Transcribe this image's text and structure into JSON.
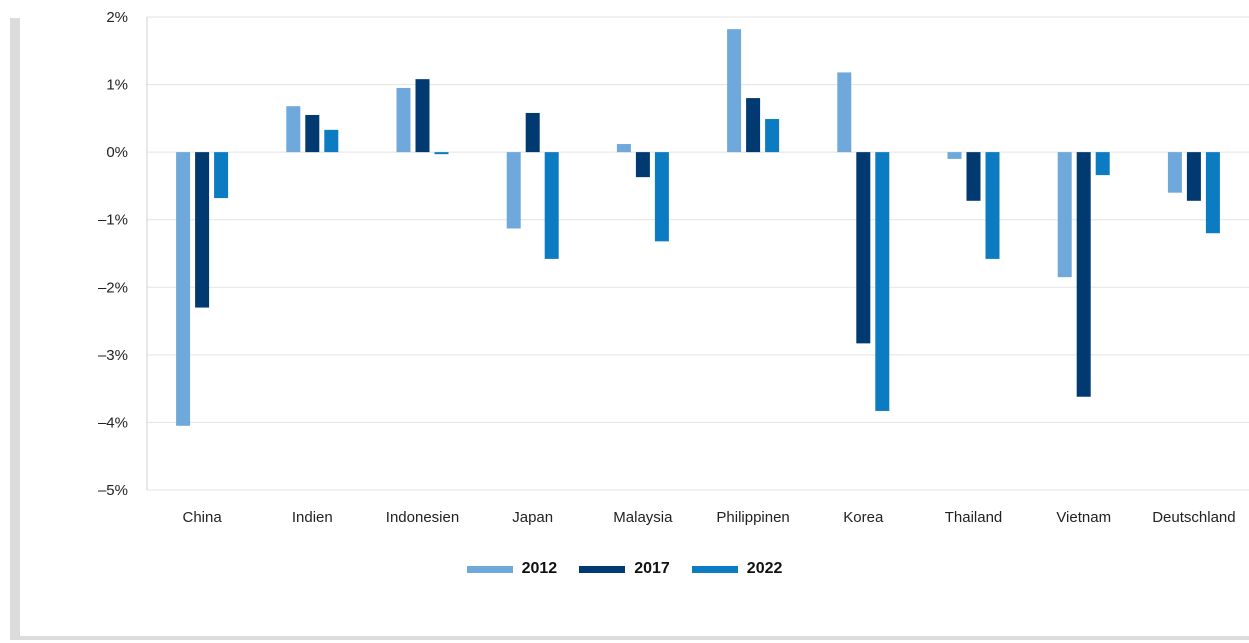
{
  "chart_data": {
    "type": "bar",
    "categories": [
      "China",
      "Indien",
      "Indonesien",
      "Japan",
      "Malaysia",
      "Philippinen",
      "Korea",
      "Thailand",
      "Vietnam",
      "Deutschland"
    ],
    "series": [
      {
        "name": "2012",
        "color": "#6FA9DC",
        "values": [
          -4.05,
          0.68,
          0.95,
          -1.13,
          0.12,
          1.82,
          1.18,
          -0.1,
          -1.85,
          -0.6
        ]
      },
      {
        "name": "2017",
        "color": "#003A70",
        "values": [
          -2.3,
          0.55,
          1.08,
          0.58,
          -0.37,
          0.8,
          -2.83,
          -0.72,
          -3.62,
          -0.72
        ]
      },
      {
        "name": "2022",
        "color": "#0C7CC2",
        "values": [
          -0.68,
          0.33,
          -0.03,
          -1.58,
          -1.32,
          0.49,
          -3.83,
          -1.58,
          -0.34,
          -1.2
        ]
      }
    ],
    "yticks": [
      {
        "value": 2,
        "label": "2%"
      },
      {
        "value": 1,
        "label": "1%"
      },
      {
        "value": 0,
        "label": "0%"
      },
      {
        "value": -1,
        "label": "–1%"
      },
      {
        "value": -2,
        "label": "–2%"
      },
      {
        "value": -3,
        "label": "–3%"
      },
      {
        "value": -4,
        "label": "–4%"
      },
      {
        "value": -5,
        "label": "–5%"
      }
    ],
    "ylim": [
      -5,
      2
    ],
    "grid": true,
    "legend_position": "bottom-center",
    "title": "",
    "xlabel": "",
    "ylabel": ""
  }
}
